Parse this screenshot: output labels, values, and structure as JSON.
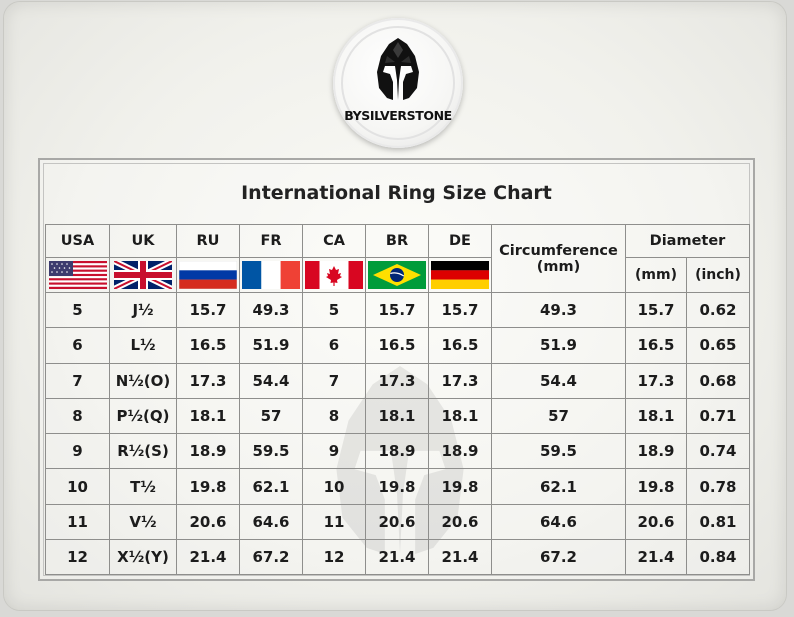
{
  "brand": {
    "logo_text": "BYSILVERSTONE"
  },
  "title": "International Ring Size Chart",
  "columns": {
    "usa": "USA",
    "uk": "UK",
    "ru": "RU",
    "fr": "FR",
    "ca": "CA",
    "br": "BR",
    "de": "DE",
    "circumference": "Circumference",
    "circumference_unit": "(mm)",
    "diameter": "Diameter",
    "diameter_mm": "(mm)",
    "diameter_inch": "(inch)"
  },
  "flags": {
    "usa": "us-flag-icon",
    "uk": "uk-flag-icon",
    "ru": "russia-flag-icon",
    "fr": "france-flag-icon",
    "ca": "canada-flag-icon",
    "br": "brazil-flag-icon",
    "de": "germany-flag-icon"
  },
  "rows": [
    [
      "5",
      "J½",
      "15.7",
      "49.3",
      "5",
      "15.7",
      "15.7",
      "49.3",
      "15.7",
      "0.62"
    ],
    [
      "6",
      "L½",
      "16.5",
      "51.9",
      "6",
      "16.5",
      "16.5",
      "51.9",
      "16.5",
      "0.65"
    ],
    [
      "7",
      "N½(O)",
      "17.3",
      "54.4",
      "7",
      "17.3",
      "17.3",
      "54.4",
      "17.3",
      "0.68"
    ],
    [
      "8",
      "P½(Q)",
      "18.1",
      "57",
      "8",
      "18.1",
      "18.1",
      "57",
      "18.1",
      "0.71"
    ],
    [
      "9",
      "R½(S)",
      "18.9",
      "59.5",
      "9",
      "18.9",
      "18.9",
      "59.5",
      "18.9",
      "0.74"
    ],
    [
      "10",
      "T½",
      "19.8",
      "62.1",
      "10",
      "19.8",
      "19.8",
      "62.1",
      "19.8",
      "0.78"
    ],
    [
      "11",
      "V½",
      "20.6",
      "64.6",
      "11",
      "20.6",
      "20.6",
      "64.6",
      "20.6",
      "0.81"
    ],
    [
      "12",
      "X½(Y)",
      "21.4",
      "67.2",
      "12",
      "21.4",
      "21.4",
      "67.2",
      "21.4",
      "0.84"
    ]
  ]
}
